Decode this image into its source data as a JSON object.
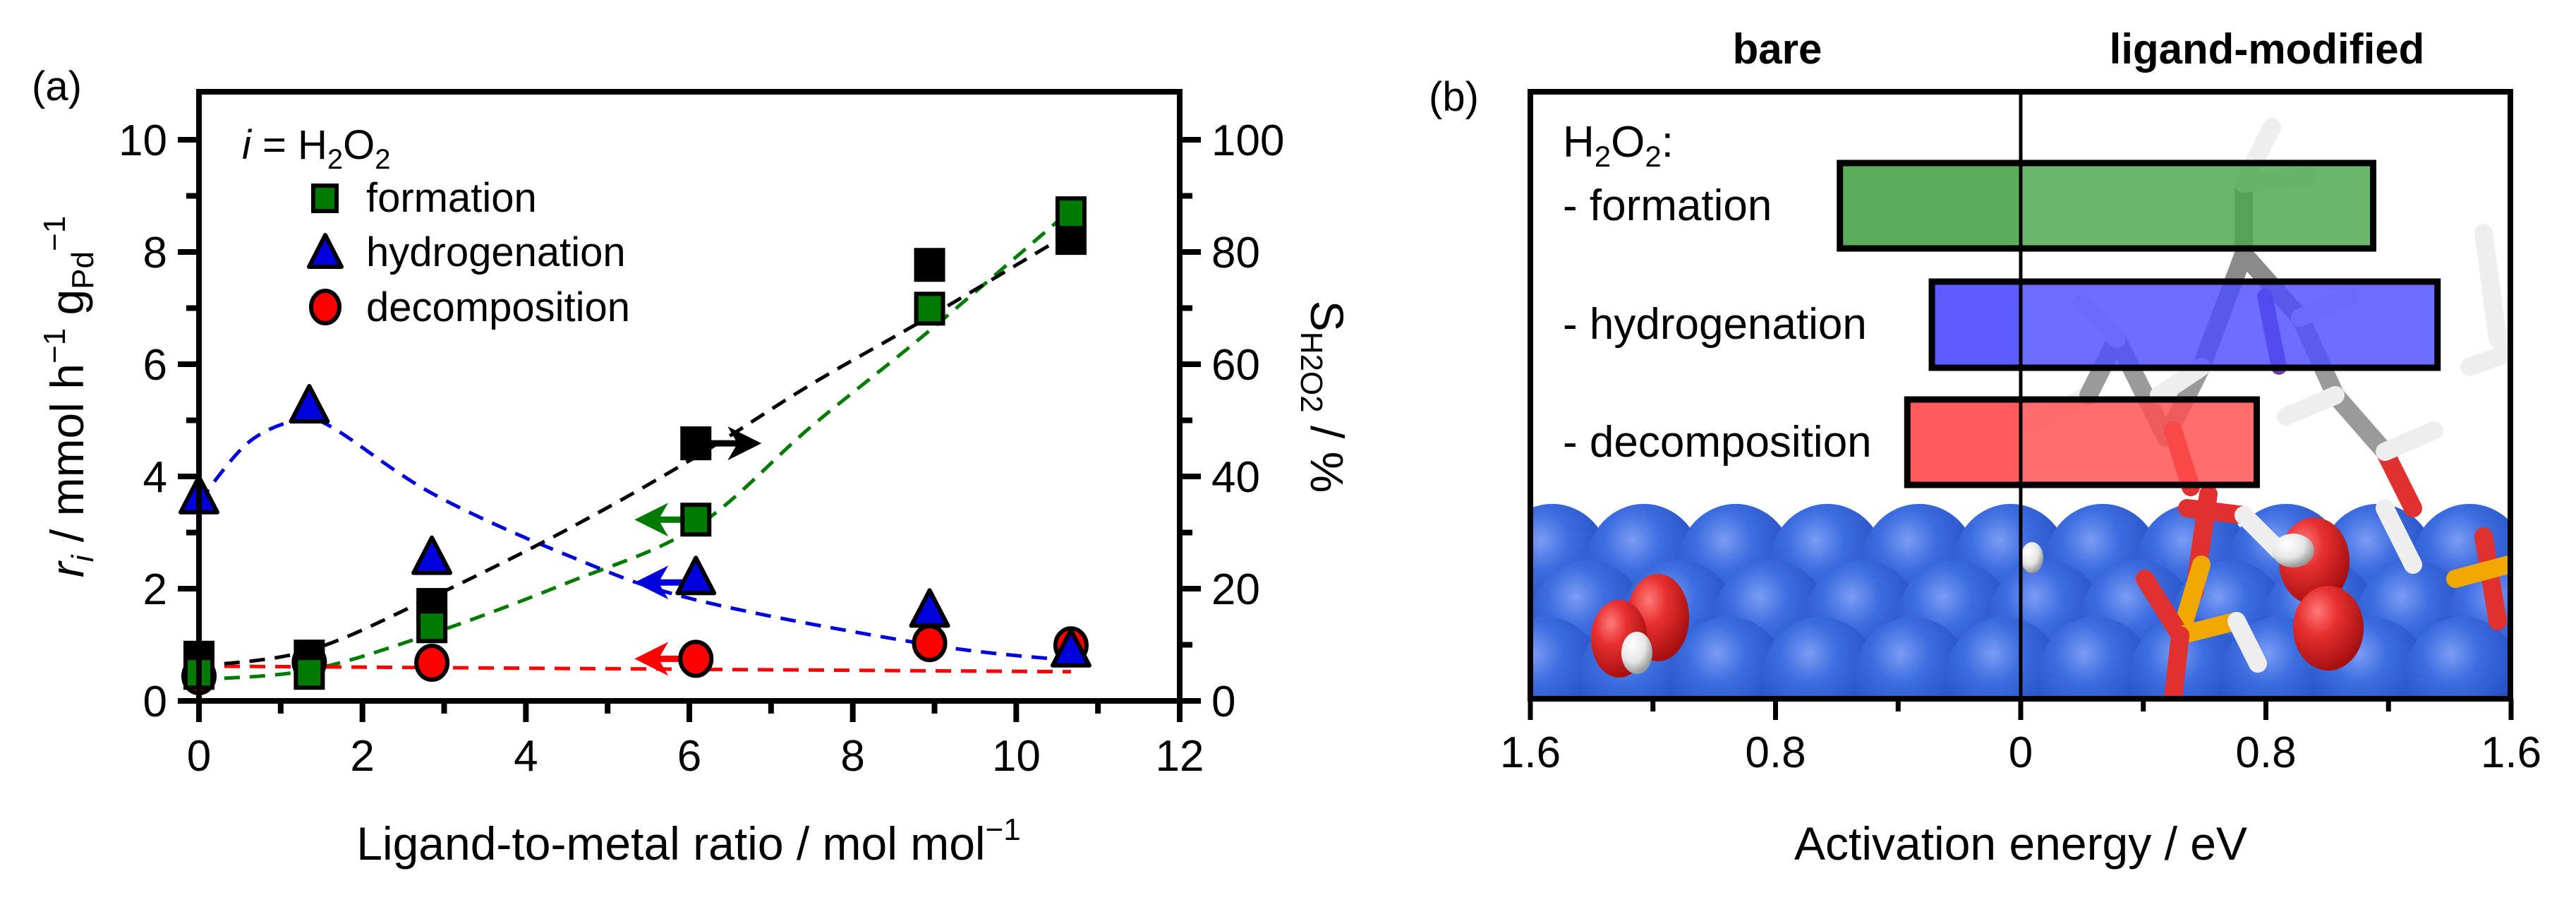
{
  "chart_data": [
    {
      "panel": "(a)",
      "type": "scatter",
      "xlabel": "Ligand-to-metal ratio / mol mol⁻¹",
      "ylabel": "r_i / mmol h⁻¹ g_Pd⁻¹",
      "ylabel_parts": {
        "var": "r",
        "var_sub": "i",
        "unit": " / mmol h",
        "sup1": "−1",
        "g": " g",
        "g_sub": "Pd",
        "sup2": "−1"
      },
      "y2label": "S_H2O2 / %",
      "y2label_parts": {
        "var": "S",
        "sub": "H2O2",
        "unit": " / %"
      },
      "xlim": [
        0,
        12
      ],
      "ylim": [
        0,
        10.9
      ],
      "y2lim": [
        0,
        109
      ],
      "xticks": [
        0,
        2,
        4,
        6,
        8,
        10,
        12
      ],
      "yticks": [
        0,
        2,
        4,
        6,
        8,
        10
      ],
      "y2ticks": [
        0,
        20,
        40,
        60,
        80,
        100
      ],
      "legend": {
        "title": "i = H2O2",
        "title_parts": {
          "var": "i",
          "eq": " = H",
          "s1": "2",
          "o": "O",
          "s2": "2"
        },
        "position": "top-left",
        "entries": [
          "formation",
          "hydrogenation",
          "decomposition"
        ]
      },
      "series": [
        {
          "name": "formation",
          "marker": "square",
          "color": "#007a00",
          "axis": "left",
          "x": [
            0,
            1.35,
            2.85,
            6.08,
            8.94,
            10.67
          ],
          "y": [
            0.5,
            0.5,
            1.33,
            3.23,
            6.99,
            8.69
          ]
        },
        {
          "name": "hydrogenation",
          "marker": "triangle",
          "color": "#0000dd",
          "axis": "left",
          "x": [
            0,
            1.35,
            2.85,
            6.08,
            8.94,
            10.67
          ],
          "y": [
            3.55,
            5.17,
            2.47,
            2.11,
            1.53,
            0.82
          ]
        },
        {
          "name": "decomposition",
          "marker": "circle",
          "color": "#ff0000",
          "axis": "left",
          "x": [
            0,
            1.35,
            2.85,
            6.08,
            8.94,
            10.67
          ],
          "y": [
            0.44,
            0.69,
            0.68,
            0.75,
            1.03,
            0.99
          ]
        },
        {
          "name": "selectivity",
          "marker": "square",
          "color": "#000000",
          "axis": "right",
          "x": [
            0,
            1.35,
            2.85,
            6.08,
            8.94,
            10.67
          ],
          "y": [
            7.7,
            7.9,
            17.1,
            45.9,
            77.7,
            82.5
          ]
        }
      ],
      "trend_lines": [
        {
          "name": "formation-fit",
          "color": "#007a00",
          "axis": "left",
          "x": [
            0,
            1.35,
            2.85,
            4.5,
            6.08,
            7.5,
            8.94,
            10.67
          ],
          "y": [
            0.38,
            0.55,
            1.2,
            2.1,
            3.1,
            4.9,
            6.6,
            8.75
          ]
        },
        {
          "name": "hydrogenation-fit",
          "color": "#0000dd",
          "axis": "left",
          "x": [
            0,
            0.6,
            1.2,
            1.6,
            2.85,
            4.5,
            6.08,
            8.94,
            10.67
          ],
          "y": [
            3.55,
            4.6,
            5.0,
            4.9,
            3.7,
            2.6,
            1.8,
            1.0,
            0.72
          ]
        },
        {
          "name": "decomposition-fit",
          "color": "#ff0000",
          "axis": "left",
          "x": [
            0,
            10.67
          ],
          "y": [
            0.62,
            0.52
          ]
        },
        {
          "name": "selectivity-fit",
          "color": "#000000",
          "axis": "right",
          "x": [
            0,
            1.35,
            2.85,
            4.5,
            6.08,
            7.5,
            8.94,
            10.67
          ],
          "y": [
            6.2,
            9.0,
            18.5,
            30.5,
            43.5,
            56.5,
            68.5,
            83.5
          ]
        }
      ],
      "annotations": [
        {
          "type": "arrow",
          "series": "selectivity",
          "x": 6.08,
          "direction": "right",
          "meaning": "right axis"
        },
        {
          "type": "arrow",
          "series": "formation",
          "x": 6.08,
          "direction": "left",
          "meaning": "left axis"
        },
        {
          "type": "arrow",
          "series": "hydrogenation",
          "x": 6.08,
          "direction": "left",
          "meaning": "left axis"
        },
        {
          "type": "arrow",
          "series": "decomposition",
          "x": 6.08,
          "direction": "left",
          "meaning": "left axis"
        }
      ],
      "grid": false
    },
    {
      "panel": "(b)",
      "type": "bar",
      "orientation": "horizontal-diverging",
      "xlabel": "Activation energy / eV",
      "xlim_left": [
        1.6,
        0
      ],
      "xlim_right": [
        0,
        1.6
      ],
      "xticks": [
        "1.6",
        "0.8",
        "0",
        "0.8",
        "1.6"
      ],
      "headers": {
        "left": "bare",
        "right": "ligand-modified"
      },
      "group_title": "H2O2:",
      "group_title_parts": {
        "h": "H",
        "s1": "2",
        "o": "O",
        "s2": "2",
        "colon": ":"
      },
      "categories": [
        "- formation",
        "- hydrogenation",
        "- decomposition"
      ],
      "series": [
        {
          "name": "bare",
          "values": [
            0.59,
            0.29,
            0.37
          ]
        },
        {
          "name": "ligand-modified",
          "values": [
            1.15,
            1.36,
            0.77
          ]
        }
      ],
      "colors": [
        "#4ca64c",
        "#4d4dff",
        "#ff4d4d"
      ],
      "background_image": "rendered Pd surface with H2O2 molecule (bare) and phosphonate ligand layer (ligand-modified)",
      "grid": false
    }
  ]
}
